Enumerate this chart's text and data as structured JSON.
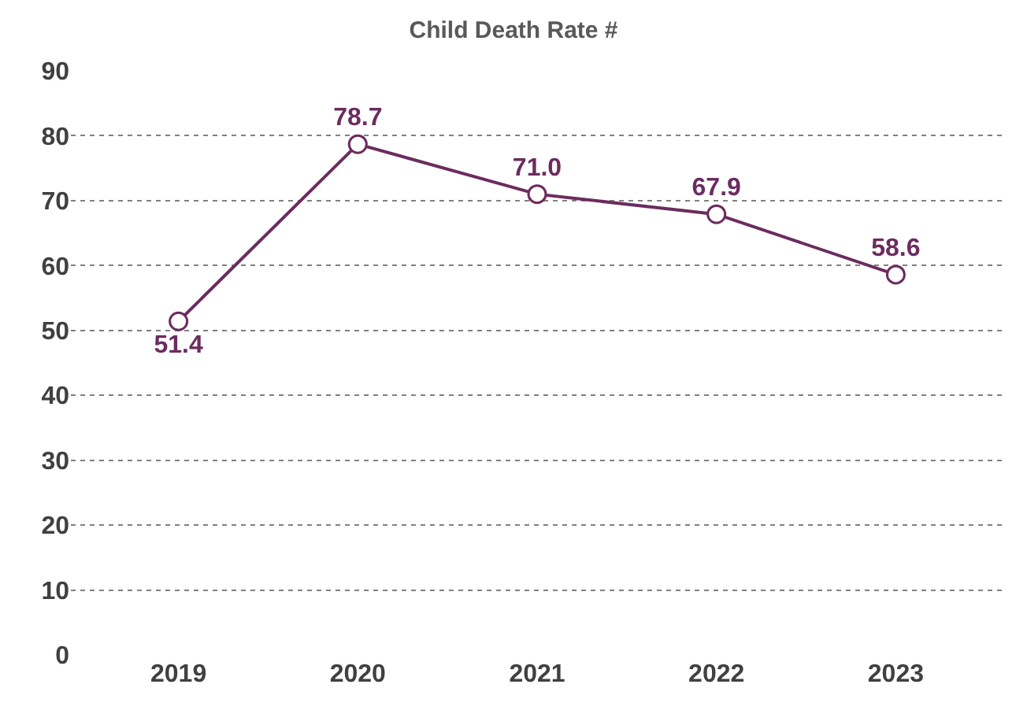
{
  "chart_data": {
    "type": "line",
    "title": "Child Death Rate #",
    "categories": [
      "2019",
      "2020",
      "2021",
      "2022",
      "2023"
    ],
    "values": [
      51.4,
      78.7,
      71.0,
      67.9,
      58.6
    ],
    "value_labels": [
      "51.4",
      "78.7",
      "71.0",
      "67.9",
      "58.6"
    ],
    "color": "#6b2c5f",
    "ylim": [
      0,
      90
    ],
    "yticks": [
      0,
      10,
      20,
      30,
      40,
      50,
      60,
      70,
      80,
      90
    ],
    "grid": "y",
    "marker": "circle",
    "line_style": "solid",
    "legend": false
  }
}
